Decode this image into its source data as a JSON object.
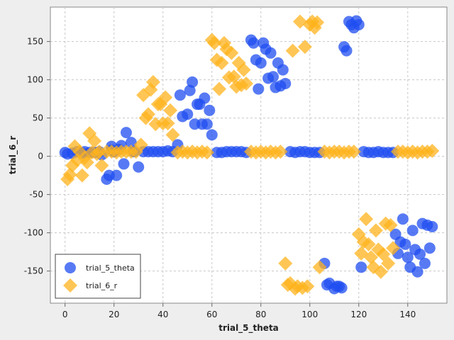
{
  "chart_data": {
    "type": "scatter",
    "xlabel": "trial_5_theta",
    "ylabel": "trial_6_r",
    "xlim": [
      -6,
      156
    ],
    "ylim": [
      -192,
      195
    ],
    "xticks": [
      0,
      20,
      40,
      60,
      80,
      100,
      120,
      140
    ],
    "yticks": [
      -150,
      -100,
      -50,
      0,
      50,
      100,
      150
    ],
    "grid": true,
    "legend_position": "bottom-left",
    "series": [
      {
        "name": "trial_5_theta",
        "color": "#1f4ef0",
        "marker": "circle",
        "points": [
          [
            0,
            5
          ],
          [
            1,
            3
          ],
          [
            3,
            4
          ],
          [
            5,
            6
          ],
          [
            7,
            4
          ],
          [
            8,
            6
          ],
          [
            10,
            5
          ],
          [
            12,
            5
          ],
          [
            14,
            6
          ],
          [
            15,
            2
          ],
          [
            17,
            -30
          ],
          [
            18,
            -25
          ],
          [
            19,
            8
          ],
          [
            19,
            13
          ],
          [
            20,
            6
          ],
          [
            21,
            -25
          ],
          [
            22,
            9
          ],
          [
            23,
            14
          ],
          [
            24,
            -10
          ],
          [
            25,
            31
          ],
          [
            27,
            18
          ],
          [
            28,
            6
          ],
          [
            30,
            -14
          ],
          [
            32,
            6
          ],
          [
            34,
            6
          ],
          [
            36,
            6
          ],
          [
            38,
            6
          ],
          [
            40,
            6
          ],
          [
            42,
            7
          ],
          [
            44,
            6
          ],
          [
            46,
            15
          ],
          [
            47,
            80
          ],
          [
            48,
            52
          ],
          [
            50,
            55
          ],
          [
            51,
            86
          ],
          [
            52,
            97
          ],
          [
            53,
            42
          ],
          [
            54,
            68
          ],
          [
            55,
            68
          ],
          [
            56,
            42
          ],
          [
            57,
            76
          ],
          [
            58,
            42
          ],
          [
            59,
            60
          ],
          [
            60,
            28
          ],
          [
            62,
            5
          ],
          [
            64,
            5
          ],
          [
            66,
            6
          ],
          [
            68,
            6
          ],
          [
            70,
            6
          ],
          [
            72,
            6
          ],
          [
            74,
            5
          ],
          [
            76,
            152
          ],
          [
            77,
            148
          ],
          [
            78,
            126
          ],
          [
            79,
            88
          ],
          [
            80,
            122
          ],
          [
            81,
            148
          ],
          [
            82,
            140
          ],
          [
            83,
            102
          ],
          [
            84,
            135
          ],
          [
            85,
            104
          ],
          [
            86,
            90
          ],
          [
            87,
            122
          ],
          [
            88,
            92
          ],
          [
            89,
            113
          ],
          [
            90,
            95
          ],
          [
            92,
            6
          ],
          [
            94,
            5
          ],
          [
            96,
            6
          ],
          [
            98,
            6
          ],
          [
            100,
            5
          ],
          [
            102,
            5
          ],
          [
            104,
            5
          ],
          [
            106,
            -140
          ],
          [
            107,
            -168
          ],
          [
            108,
            -166
          ],
          [
            110,
            -173
          ],
          [
            111,
            -170
          ],
          [
            112,
            -170
          ],
          [
            113,
            -172
          ],
          [
            114,
            143
          ],
          [
            115,
            138
          ],
          [
            116,
            176
          ],
          [
            117,
            172
          ],
          [
            118,
            168
          ],
          [
            119,
            177
          ],
          [
            120,
            172
          ],
          [
            121,
            -145
          ],
          [
            122,
            6
          ],
          [
            124,
            5
          ],
          [
            126,
            5
          ],
          [
            128,
            6
          ],
          [
            130,
            5
          ],
          [
            132,
            5
          ],
          [
            134,
            5
          ],
          [
            135,
            -102
          ],
          [
            136,
            -127
          ],
          [
            137,
            -112
          ],
          [
            138,
            -82
          ],
          [
            139,
            -115
          ],
          [
            140,
            -132
          ],
          [
            141,
            -145
          ],
          [
            142,
            -97
          ],
          [
            143,
            -122
          ],
          [
            144,
            -151
          ],
          [
            145,
            -128
          ],
          [
            146,
            -88
          ],
          [
            147,
            -140
          ],
          [
            148,
            -90
          ],
          [
            149,
            -120
          ],
          [
            150,
            -92
          ]
        ]
      },
      {
        "name": "trial_6_r",
        "color": "#ffb31c",
        "marker": "diamond",
        "points": [
          [
            1,
            -30
          ],
          [
            2,
            -24
          ],
          [
            3,
            -12
          ],
          [
            4,
            13
          ],
          [
            5,
            -5
          ],
          [
            6,
            6
          ],
          [
            7,
            -25
          ],
          [
            8,
            -2
          ],
          [
            9,
            -8
          ],
          [
            10,
            30
          ],
          [
            11,
            5
          ],
          [
            12,
            20
          ],
          [
            13,
            3
          ],
          [
            14,
            6
          ],
          [
            15,
            -12
          ],
          [
            17,
            6
          ],
          [
            19,
            6
          ],
          [
            21,
            5
          ],
          [
            23,
            6
          ],
          [
            25,
            6
          ],
          [
            27,
            6
          ],
          [
            29,
            6
          ],
          [
            31,
            15
          ],
          [
            32,
            80
          ],
          [
            33,
            50
          ],
          [
            34,
            55
          ],
          [
            35,
            87
          ],
          [
            36,
            97
          ],
          [
            37,
            42
          ],
          [
            38,
            68
          ],
          [
            39,
            68
          ],
          [
            40,
            43
          ],
          [
            41,
            77
          ],
          [
            42,
            43
          ],
          [
            43,
            60
          ],
          [
            44,
            28
          ],
          [
            46,
            5
          ],
          [
            48,
            6
          ],
          [
            50,
            5
          ],
          [
            52,
            6
          ],
          [
            54,
            5
          ],
          [
            56,
            6
          ],
          [
            58,
            5
          ],
          [
            60,
            152
          ],
          [
            61,
            148
          ],
          [
            62,
            126
          ],
          [
            63,
            88
          ],
          [
            64,
            122
          ],
          [
            65,
            148
          ],
          [
            66,
            140
          ],
          [
            67,
            103
          ],
          [
            68,
            135
          ],
          [
            69,
            104
          ],
          [
            70,
            91
          ],
          [
            71,
            122
          ],
          [
            72,
            93
          ],
          [
            73,
            113
          ],
          [
            74,
            95
          ],
          [
            76,
            6
          ],
          [
            78,
            5
          ],
          [
            80,
            6
          ],
          [
            82,
            5
          ],
          [
            84,
            6
          ],
          [
            86,
            5
          ],
          [
            88,
            6
          ],
          [
            90,
            -140
          ],
          [
            91,
            -168
          ],
          [
            92,
            -166
          ],
          [
            93,
            138
          ],
          [
            94,
            -173
          ],
          [
            95,
            -170
          ],
          [
            96,
            176
          ],
          [
            97,
            -172
          ],
          [
            98,
            143
          ],
          [
            99,
            -170
          ],
          [
            100,
            172
          ],
          [
            101,
            176
          ],
          [
            102,
            168
          ],
          [
            103,
            175
          ],
          [
            104,
            -145
          ],
          [
            106,
            6
          ],
          [
            108,
            5
          ],
          [
            110,
            6
          ],
          [
            112,
            6
          ],
          [
            114,
            5
          ],
          [
            116,
            6
          ],
          [
            118,
            6
          ],
          [
            120,
            -102
          ],
          [
            121,
            -127
          ],
          [
            122,
            -112
          ],
          [
            123,
            -82
          ],
          [
            124,
            -115
          ],
          [
            125,
            -132
          ],
          [
            126,
            -145
          ],
          [
            127,
            -97
          ],
          [
            128,
            -122
          ],
          [
            129,
            -151
          ],
          [
            130,
            -128
          ],
          [
            131,
            -88
          ],
          [
            132,
            -140
          ],
          [
            133,
            -90
          ],
          [
            134,
            -120
          ],
          [
            136,
            6
          ],
          [
            138,
            6
          ],
          [
            140,
            5
          ],
          [
            142,
            6
          ],
          [
            144,
            5
          ],
          [
            146,
            6
          ],
          [
            148,
            6
          ],
          [
            150,
            7
          ]
        ]
      }
    ]
  }
}
